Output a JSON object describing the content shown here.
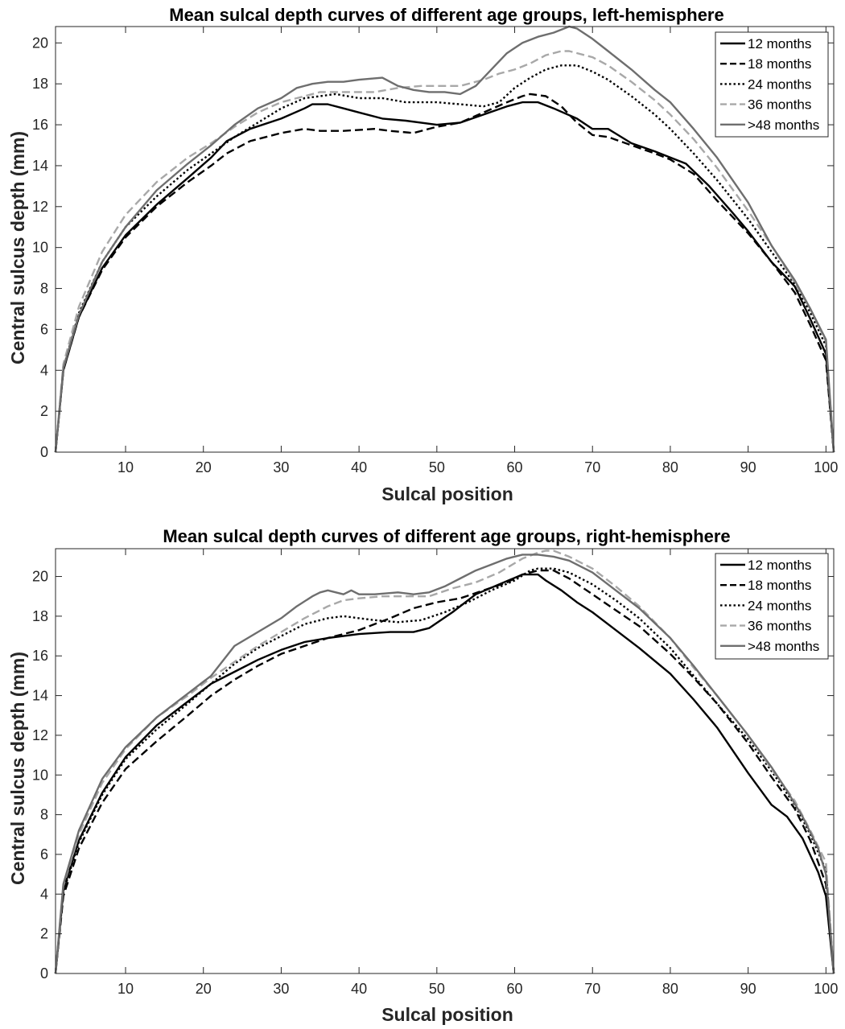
{
  "chart_data": [
    {
      "type": "line",
      "title": "Mean sulcal depth curves of different age groups, left-hemisphere",
      "xlabel": "Sulcal position",
      "ylabel": "Central sulcus depth (mm)",
      "xlim": [
        1,
        101
      ],
      "ylim": [
        0,
        20.8
      ],
      "xticks": [
        10,
        20,
        30,
        40,
        50,
        60,
        70,
        80,
        90,
        100
      ],
      "xtick_labels": [
        "10",
        "20",
        "30",
        "40",
        "50",
        "60",
        "70",
        "80",
        "90",
        "100"
      ],
      "yticks": [
        0,
        2,
        4,
        6,
        8,
        10,
        12,
        14,
        16,
        18,
        20
      ],
      "ytick_labels": [
        "0",
        "2",
        "4",
        "6",
        "8",
        "10",
        "12",
        "14",
        "16",
        "18",
        "20"
      ],
      "grid": false,
      "legend": "top-right",
      "series": [
        {
          "name": "12 months",
          "color": "#000000",
          "dash": "solid",
          "x": [
            1,
            2,
            4,
            7,
            10,
            14,
            18,
            21,
            23,
            26,
            30,
            33,
            34,
            36,
            38,
            40,
            43,
            46,
            50,
            53,
            56,
            59,
            61,
            63,
            65,
            68,
            70,
            72,
            75,
            78,
            80,
            82,
            85,
            88,
            90,
            93,
            96,
            98,
            100,
            101
          ],
          "y": [
            0,
            4.0,
            6.6,
            9.0,
            10.6,
            12.1,
            13.4,
            14.4,
            15.2,
            15.8,
            16.3,
            16.8,
            17.0,
            17.0,
            16.8,
            16.6,
            16.3,
            16.2,
            16.0,
            16.1,
            16.5,
            16.9,
            17.1,
            17.1,
            16.8,
            16.3,
            15.8,
            15.8,
            15.1,
            14.7,
            14.4,
            14.1,
            13.0,
            11.7,
            10.8,
            9.3,
            8.1,
            6.5,
            4.8,
            0
          ]
        },
        {
          "name": "18 months",
          "color": "#000000",
          "dash": "dashed",
          "x": [
            1,
            2,
            4,
            7,
            10,
            14,
            18,
            21,
            23,
            26,
            30,
            33,
            35,
            38,
            42,
            44,
            47,
            50,
            53,
            56,
            59,
            61,
            62,
            64,
            66,
            68,
            70,
            72,
            75,
            78,
            80,
            83,
            86,
            90,
            93,
            96,
            98,
            100,
            101
          ],
          "y": [
            0,
            4.0,
            6.6,
            8.9,
            10.5,
            12.0,
            13.2,
            14.0,
            14.6,
            15.2,
            15.6,
            15.8,
            15.7,
            15.7,
            15.8,
            15.7,
            15.6,
            15.9,
            16.1,
            16.6,
            17.1,
            17.4,
            17.5,
            17.4,
            16.9,
            16.1,
            15.5,
            15.4,
            15.0,
            14.6,
            14.3,
            13.6,
            12.3,
            10.7,
            9.3,
            7.8,
            6.2,
            4.5,
            0
          ]
        },
        {
          "name": "24 months",
          "color": "#000000",
          "dash": "dotted",
          "x": [
            1,
            2,
            4,
            7,
            10,
            14,
            18,
            21,
            24,
            27,
            30,
            33,
            35,
            37,
            40,
            43,
            46,
            50,
            53,
            56,
            58,
            60,
            62,
            64,
            66,
            68,
            70,
            72,
            75,
            78,
            80,
            83,
            86,
            90,
            93,
            96,
            98,
            100,
            101
          ],
          "y": [
            0,
            4.1,
            6.8,
            9.3,
            11.0,
            12.5,
            13.8,
            14.6,
            15.4,
            16.1,
            16.8,
            17.3,
            17.4,
            17.5,
            17.3,
            17.3,
            17.1,
            17.1,
            17.0,
            16.9,
            17.1,
            17.8,
            18.3,
            18.7,
            18.9,
            18.9,
            18.6,
            18.2,
            17.4,
            16.5,
            15.8,
            14.6,
            13.3,
            11.4,
            9.8,
            8.2,
            6.8,
            5.2,
            0
          ]
        },
        {
          "name": "36 months",
          "color": "#a8a8a8",
          "dash": "dashed",
          "x": [
            1,
            2,
            4,
            7,
            10,
            14,
            18,
            21,
            24,
            27,
            30,
            33,
            35,
            38,
            42,
            45,
            48,
            50,
            53,
            56,
            58,
            60,
            62,
            64,
            66,
            67,
            70,
            72,
            75,
            78,
            80,
            83,
            86,
            90,
            93,
            95,
            98,
            100,
            101
          ],
          "y": [
            0,
            4.3,
            7.1,
            9.8,
            11.6,
            13.2,
            14.4,
            15.1,
            15.9,
            16.6,
            17.1,
            17.4,
            17.6,
            17.6,
            17.6,
            17.8,
            17.9,
            17.9,
            17.9,
            18.2,
            18.5,
            18.7,
            19.0,
            19.4,
            19.6,
            19.6,
            19.3,
            18.9,
            18.1,
            17.2,
            16.5,
            15.3,
            13.9,
            11.8,
            10.1,
            8.9,
            7.0,
            5.4,
            0
          ]
        },
        {
          "name": ">48 months",
          "color": "#6e6e6e",
          "dash": "solid",
          "x": [
            1,
            2,
            4,
            7,
            10,
            14,
            18,
            21,
            24,
            27,
            30,
            32,
            34,
            36,
            38,
            40,
            43,
            45,
            47,
            49,
            51,
            53,
            55,
            57,
            59,
            61,
            63,
            65,
            67,
            68,
            70,
            72,
            75,
            78,
            80,
            83,
            86,
            90,
            93,
            96,
            98,
            100,
            101
          ],
          "y": [
            0,
            4.1,
            6.7,
            9.3,
            11.0,
            12.8,
            14.1,
            15.0,
            16.0,
            16.8,
            17.3,
            17.8,
            18.0,
            18.1,
            18.1,
            18.2,
            18.3,
            17.9,
            17.7,
            17.6,
            17.6,
            17.5,
            17.9,
            18.7,
            19.5,
            20.0,
            20.3,
            20.5,
            20.8,
            20.7,
            20.2,
            19.6,
            18.7,
            17.7,
            17.1,
            15.8,
            14.4,
            12.2,
            10.1,
            8.4,
            7.0,
            5.5,
            0
          ]
        }
      ]
    },
    {
      "type": "line",
      "title": "Mean sulcal depth curves of different age groups, right-hemisphere",
      "xlabel": "Sulcal position",
      "ylabel": "Central sulcus depth (mm)",
      "xlim": [
        1,
        101
      ],
      "ylim": [
        0,
        21.4
      ],
      "xticks": [
        10,
        20,
        30,
        40,
        50,
        60,
        70,
        80,
        90,
        100
      ],
      "xtick_labels": [
        "10",
        "20",
        "30",
        "40",
        "50",
        "60",
        "70",
        "80",
        "90",
        "100"
      ],
      "yticks": [
        0,
        2,
        4,
        6,
        8,
        10,
        12,
        14,
        16,
        18,
        20
      ],
      "ytick_labels": [
        "0",
        "2",
        "4",
        "6",
        "8",
        "10",
        "12",
        "14",
        "16",
        "18",
        "20"
      ],
      "grid": false,
      "legend": "top-right",
      "series": [
        {
          "name": "12 months",
          "color": "#000000",
          "dash": "solid",
          "x": [
            1,
            2,
            4,
            7,
            10,
            14,
            18,
            21,
            24,
            27,
            30,
            33,
            36,
            40,
            44,
            47,
            49,
            52,
            55,
            58,
            61,
            63,
            64,
            66,
            68,
            70,
            73,
            76,
            80,
            83,
            86,
            90,
            93,
            95,
            97,
            99,
            100,
            101
          ],
          "y": [
            0,
            4.2,
            6.7,
            9.1,
            10.9,
            12.5,
            13.7,
            14.6,
            15.2,
            15.8,
            16.3,
            16.7,
            16.9,
            17.1,
            17.2,
            17.2,
            17.4,
            18.2,
            19.1,
            19.6,
            20.1,
            20.1,
            19.8,
            19.3,
            18.7,
            18.2,
            17.3,
            16.4,
            15.1,
            13.8,
            12.4,
            10.1,
            8.5,
            7.9,
            6.8,
            5.1,
            3.9,
            0
          ]
        },
        {
          "name": "18 months",
          "color": "#000000",
          "dash": "dashed",
          "x": [
            1,
            2,
            4,
            7,
            10,
            14,
            18,
            21,
            24,
            27,
            30,
            33,
            36,
            40,
            44,
            47,
            50,
            53,
            56,
            59,
            61,
            63,
            65,
            67,
            70,
            73,
            76,
            80,
            83,
            86,
            90,
            93,
            96,
            98,
            100,
            101
          ],
          "y": [
            0,
            3.9,
            6.3,
            8.6,
            10.3,
            11.7,
            13.0,
            14.0,
            14.8,
            15.5,
            16.1,
            16.5,
            16.9,
            17.3,
            17.9,
            18.4,
            18.7,
            18.9,
            19.3,
            19.7,
            20.1,
            20.3,
            20.3,
            19.9,
            19.1,
            18.3,
            17.5,
            16.1,
            14.9,
            13.6,
            11.6,
            9.9,
            8.3,
            6.7,
            4.5,
            0
          ]
        },
        {
          "name": "24 months",
          "color": "#000000",
          "dash": "dotted",
          "x": [
            1,
            2,
            4,
            7,
            10,
            14,
            18,
            21,
            24,
            27,
            30,
            33,
            36,
            38,
            40,
            42,
            45,
            48,
            51,
            54,
            57,
            60,
            62,
            63,
            65,
            67,
            70,
            73,
            76,
            80,
            83,
            86,
            90,
            93,
            96,
            98,
            100,
            101
          ],
          "y": [
            0,
            4.1,
            6.6,
            9.0,
            10.8,
            12.3,
            13.6,
            14.6,
            15.6,
            16.4,
            17.0,
            17.6,
            17.9,
            18.0,
            17.9,
            17.8,
            17.7,
            17.8,
            18.2,
            18.7,
            19.3,
            19.8,
            20.3,
            20.4,
            20.4,
            20.2,
            19.6,
            18.8,
            17.9,
            16.4,
            15.0,
            13.6,
            11.8,
            10.2,
            8.5,
            7.0,
            5.2,
            0
          ]
        },
        {
          "name": "36 months",
          "color": "#a8a8a8",
          "dash": "dashed",
          "x": [
            1,
            2,
            4,
            7,
            10,
            14,
            18,
            21,
            24,
            27,
            30,
            33,
            36,
            38,
            40,
            43,
            46,
            49,
            52,
            55,
            58,
            61,
            63,
            64,
            65,
            67,
            70,
            73,
            76,
            80,
            83,
            86,
            90,
            93,
            96,
            98,
            100,
            101
          ],
          "y": [
            0,
            4.4,
            7.0,
            9.6,
            11.3,
            12.9,
            14.0,
            14.9,
            15.7,
            16.5,
            17.2,
            17.9,
            18.5,
            18.8,
            18.9,
            19.0,
            19.0,
            19.0,
            19.4,
            19.7,
            20.2,
            20.9,
            21.2,
            21.3,
            21.3,
            21.0,
            20.4,
            19.5,
            18.5,
            16.9,
            15.4,
            14.0,
            12.0,
            10.3,
            8.7,
            7.2,
            5.6,
            0
          ]
        },
        {
          "name": ">48 months",
          "color": "#6e6e6e",
          "dash": "solid",
          "x": [
            1,
            2,
            4,
            7,
            10,
            14,
            18,
            21,
            24,
            27,
            30,
            32,
            34,
            35,
            36,
            38,
            39,
            40,
            42,
            45,
            47,
            49,
            51,
            53,
            55,
            57,
            59,
            61,
            63,
            65,
            67,
            70,
            73,
            76,
            80,
            83,
            87,
            90,
            93,
            95,
            97,
            99,
            100,
            101
          ],
          "y": [
            0,
            4.5,
            7.2,
            9.8,
            11.4,
            12.9,
            14.1,
            15.0,
            16.5,
            17.2,
            17.9,
            18.5,
            19.0,
            19.2,
            19.3,
            19.1,
            19.3,
            19.1,
            19.1,
            19.2,
            19.1,
            19.2,
            19.5,
            19.9,
            20.3,
            20.6,
            20.9,
            21.1,
            21.1,
            21.0,
            20.8,
            20.2,
            19.3,
            18.4,
            16.9,
            15.5,
            13.5,
            12.0,
            10.4,
            9.2,
            7.9,
            6.3,
            5.0,
            0
          ]
        }
      ]
    }
  ]
}
